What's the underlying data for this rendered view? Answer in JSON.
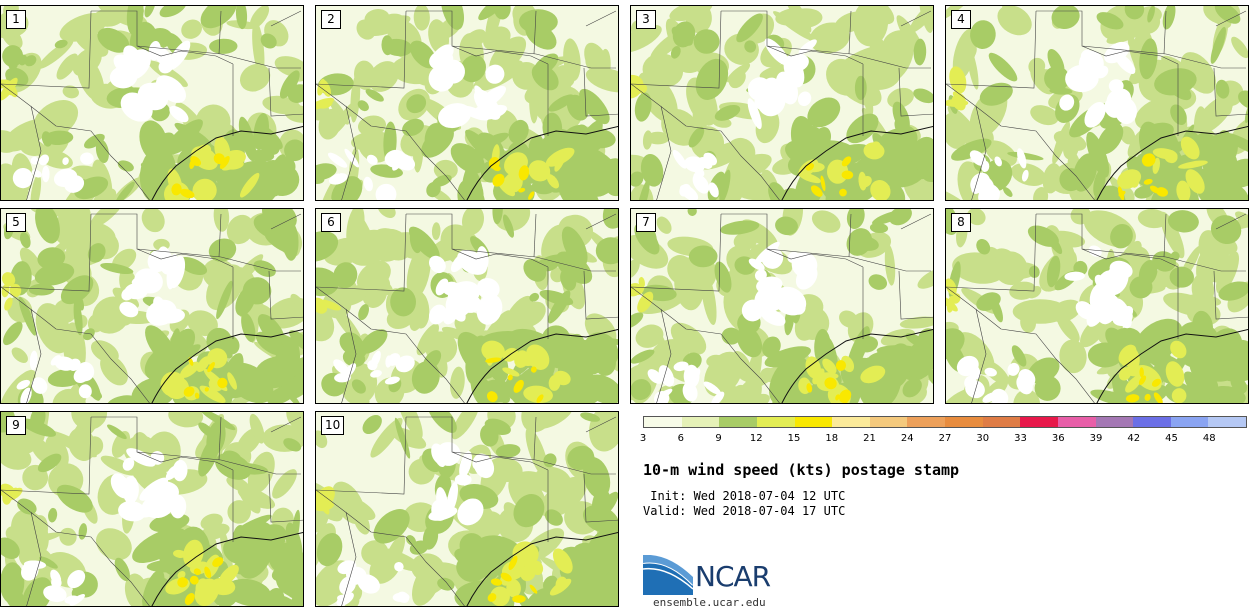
{
  "title": "10-m wind speed (kts) postage stamp",
  "init_time": " Init: Wed 2018-07-04 12 UTC",
  "valid_time": "Valid: Wed 2018-07-04 17 UTC",
  "members": [
    "1",
    "2",
    "3",
    "4",
    "5",
    "6",
    "7",
    "8",
    "9",
    "10"
  ],
  "colorbar": {
    "colors": [
      "#f7fbe8",
      "#e5f1b7",
      "#a8cc66",
      "#e3ed54",
      "#f9e800",
      "#fbea9a",
      "#f4c97d",
      "#eda05a",
      "#e88c3e",
      "#df7c45",
      "#e8184a",
      "#e85ea8",
      "#a477b4",
      "#6b6fe6",
      "#8aa4f2",
      "#b5c8f4"
    ],
    "ticks": [
      "3",
      "6",
      "9",
      "12",
      "15",
      "18",
      "21",
      "24",
      "27",
      "30",
      "33",
      "36",
      "39",
      "42",
      "45",
      "48"
    ]
  },
  "logo": {
    "text": "NCAR",
    "url": "ensemble.ucar.edu"
  }
}
